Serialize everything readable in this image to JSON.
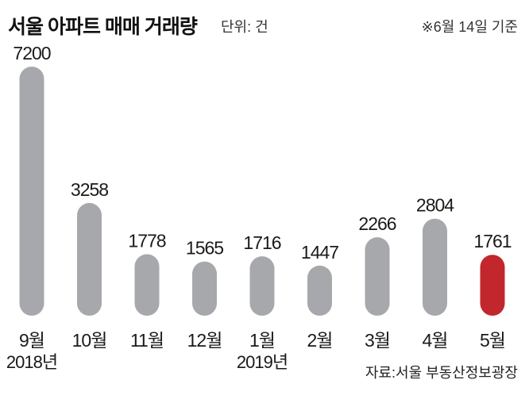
{
  "header": {
    "title": "서울 아파트 매매 거래량",
    "unit": "단위: 건",
    "basis": "※6월 14일 기준"
  },
  "source": "자료:서울 부동산정보광장",
  "colors": {
    "bar": "#a7a8ab",
    "highlight": "#c1272d",
    "text": "#1a1a1a"
  },
  "chart_data": {
    "type": "bar",
    "title": "서울 아파트 매매 거래량",
    "ylabel": "단위: 건",
    "categories": [
      "9월",
      "10월",
      "11월",
      "12월",
      "1월",
      "2월",
      "3월",
      "4월",
      "5월"
    ],
    "year_labels": [
      "2018년",
      "",
      "",
      "",
      "2019년",
      "",
      "",
      "",
      ""
    ],
    "values": [
      7200,
      3258,
      1778,
      1565,
      1716,
      1447,
      2266,
      2804,
      1761
    ],
    "highlight_index": 8,
    "ylim": [
      0,
      7200
    ],
    "grid": false,
    "legend": "none"
  }
}
